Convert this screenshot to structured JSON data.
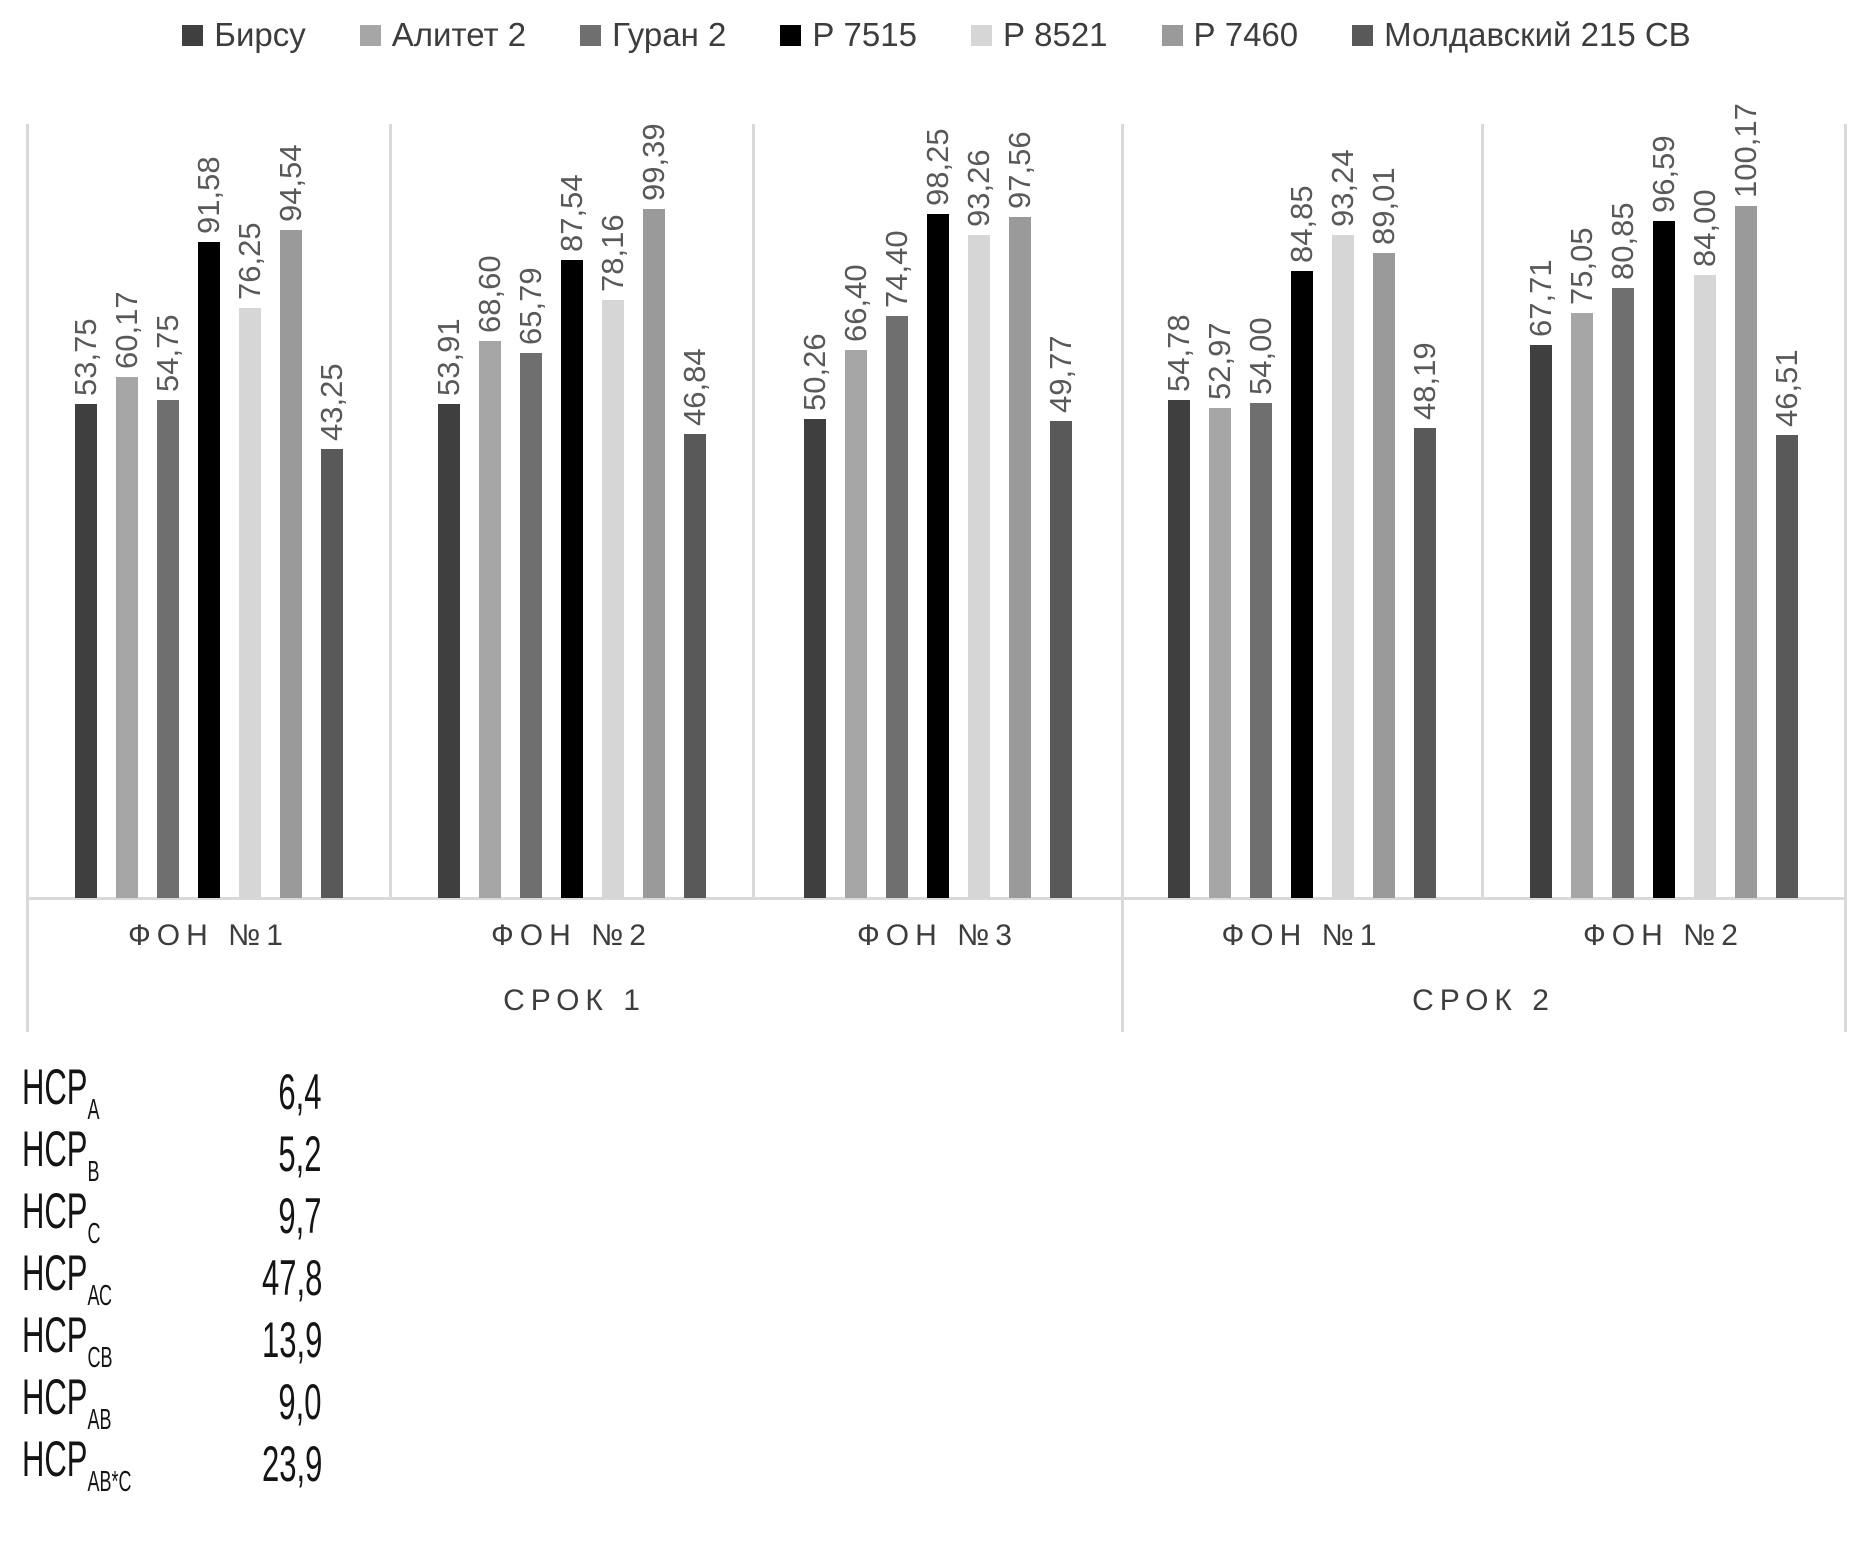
{
  "chart_data": {
    "type": "bar",
    "title": "",
    "legend_position": "top",
    "categories": [
      "ФОН №1",
      "ФОН №2",
      "ФОН №3",
      "ФОН №1",
      "ФОН №2"
    ],
    "category_parents": [
      "СРОК 1",
      "СРОК 1",
      "СРОК 1",
      "СРОК 2",
      "СРОК 2"
    ],
    "super_groups": [
      {
        "label": "СРОК 1",
        "from": 0,
        "to": 3
      },
      {
        "label": "СРОК 2",
        "from": 3,
        "to": 5
      }
    ],
    "series": [
      {
        "name": "Бирсу",
        "color": "#3f3f3f",
        "values": [
          53.75,
          53.91,
          50.26,
          54.78,
          67.71
        ]
      },
      {
        "name": "Алитет 2",
        "color": "#a6a6a6",
        "values": [
          60.17,
          68.6,
          66.4,
          52.97,
          75.05
        ]
      },
      {
        "name": "Гуран 2",
        "color": "#6f6f6f",
        "values": [
          54.75,
          65.79,
          74.4,
          54.0,
          80.85
        ]
      },
      {
        "name": "Р 7515",
        "color": "#000000",
        "values": [
          91.58,
          87.54,
          98.25,
          84.85,
          96.59
        ]
      },
      {
        "name": "Р 8521",
        "color": "#d6d6d6",
        "values": [
          76.25,
          78.16,
          93.26,
          93.24,
          84.0
        ]
      },
      {
        "name": "Р 7460",
        "color": "#9a9a9a",
        "values": [
          94.54,
          99.39,
          97.56,
          89.01,
          100.17
        ]
      },
      {
        "name": "Молдавский 215 СВ",
        "color": "#595959",
        "values": [
          43.25,
          46.84,
          49.77,
          48.19,
          46.51
        ]
      }
    ],
    "value_labels": {
      "visible": true,
      "rotation_deg": 90,
      "decimal_separator": ",",
      "decimals": 2
    },
    "axis": {
      "y_axis_visible": false,
      "gridlines": false,
      "baseline_value": -61.6,
      "plot_top_value": 119
    },
    "line_color": "#d9d9d9"
  },
  "nsr_table": {
    "rows": [
      {
        "name": "НСР",
        "sub": "А",
        "value": "6,4"
      },
      {
        "name": "НСР",
        "sub": "В",
        "value": "5,2"
      },
      {
        "name": "НСР",
        "sub": "С",
        "value": "9,7"
      },
      {
        "name": "НСР",
        "sub": "АС",
        "value": "47,8"
      },
      {
        "name": "НСР",
        "sub": "СВ",
        "value": "13,9"
      },
      {
        "name": "НСР",
        "sub": "АВ",
        "value": "9,0"
      },
      {
        "name": "НСР",
        "sub": "АВ*С",
        "value": "23,9"
      }
    ]
  }
}
